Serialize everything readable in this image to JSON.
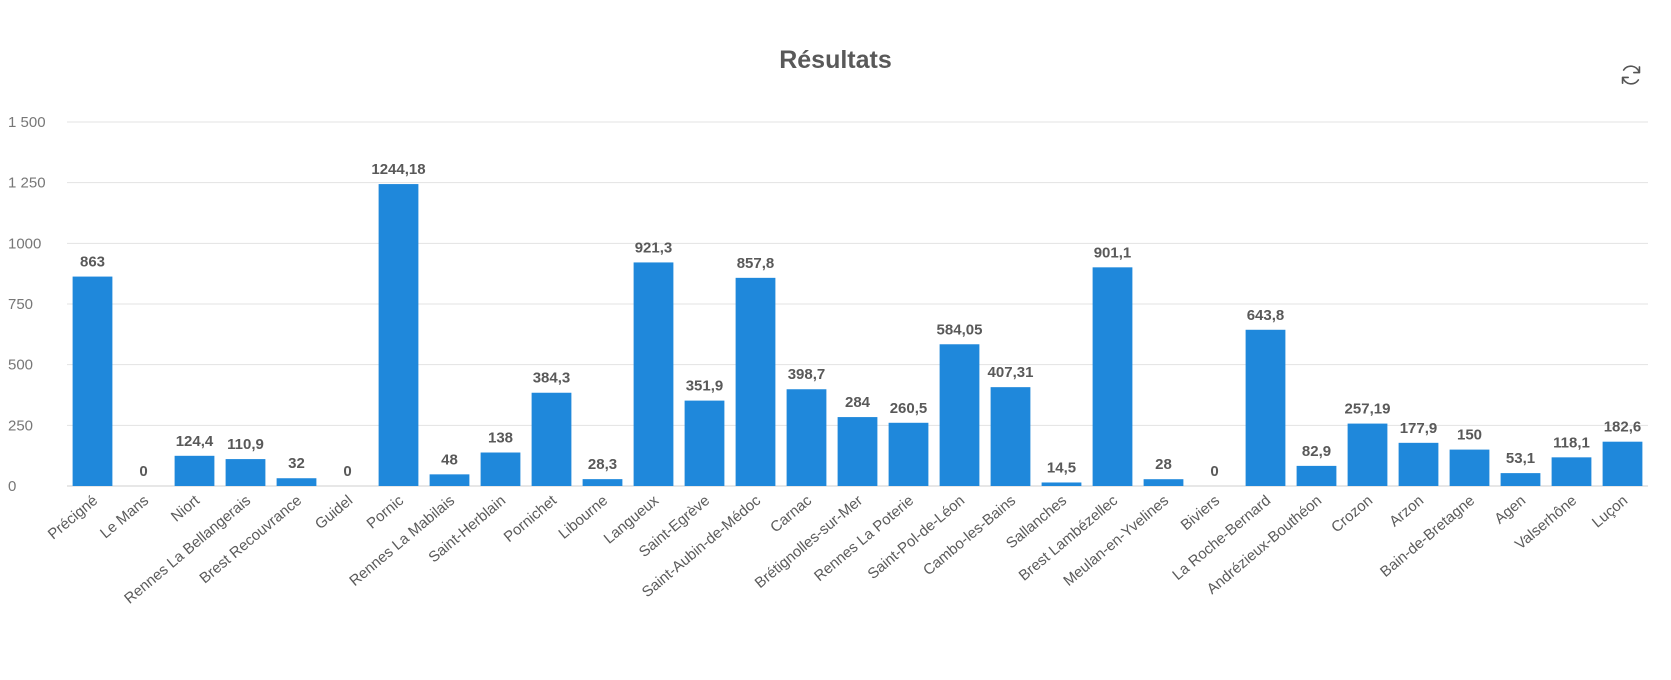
{
  "colors": {
    "bar": "#1f88db",
    "grid": "#e3e3e3",
    "title": "#595959"
  },
  "toolbar": {
    "refresh_icon": "refresh-icon"
  },
  "chart_data": {
    "type": "bar",
    "title": "Résultats",
    "xlabel": "",
    "ylabel": "",
    "ylim": [
      0,
      1500
    ],
    "grid": true,
    "yticks": [
      0,
      250,
      500,
      750,
      1000,
      1250,
      1500
    ],
    "ytick_labels": [
      "0",
      "250",
      "500",
      "750",
      "1000",
      "1 250",
      "1 500"
    ],
    "categories": [
      "Précigné",
      "Le Mans",
      "Niort",
      "Rennes La Bellangerais",
      "Brest Recouvrance",
      "Guidel",
      "Pornic",
      "Rennes La Mabilais",
      "Saint-Herblain",
      "Pornichet",
      "Libourne",
      "Langueux",
      "Saint-Egrève",
      "Saint-Aubin-de-Médoc",
      "Carnac",
      "Brétignolles-sur-Mer",
      "Rennes La Poterie",
      "Saint-Pol-de-Léon",
      "Cambo-les-Bains",
      "Sallanches",
      "Brest Lambézellec",
      "Meulan-en-Yvelines",
      "Biviers",
      "La Roche-Bernard",
      "Andrézieux-Bouthéon",
      "Crozon",
      "Arzon",
      "Bain-de-Bretagne",
      "Agen",
      "Valserhône",
      "Luçon"
    ],
    "values": [
      863,
      0,
      124.4,
      110.9,
      32,
      0,
      1244.18,
      48,
      138,
      384.3,
      28.3,
      921.3,
      351.9,
      857.8,
      398.7,
      284,
      260.5,
      584.05,
      407.31,
      14.5,
      901.1,
      28,
      0,
      643.8,
      82.9,
      257.19,
      177.9,
      150,
      53.1,
      118.1,
      182.6
    ],
    "value_labels": [
      "863",
      "0",
      "124,4",
      "110,9",
      "32",
      "0",
      "1244,18",
      "48",
      "138",
      "384,3",
      "28,3",
      "921,3",
      "351,9",
      "857,8",
      "398,7",
      "284",
      "260,5",
      "584,05",
      "407,31",
      "14,5",
      "901,1",
      "28",
      "0",
      "643,8",
      "82,9",
      "257,19",
      "177,9",
      "150",
      "53,1",
      "118,1",
      "182,6"
    ]
  }
}
